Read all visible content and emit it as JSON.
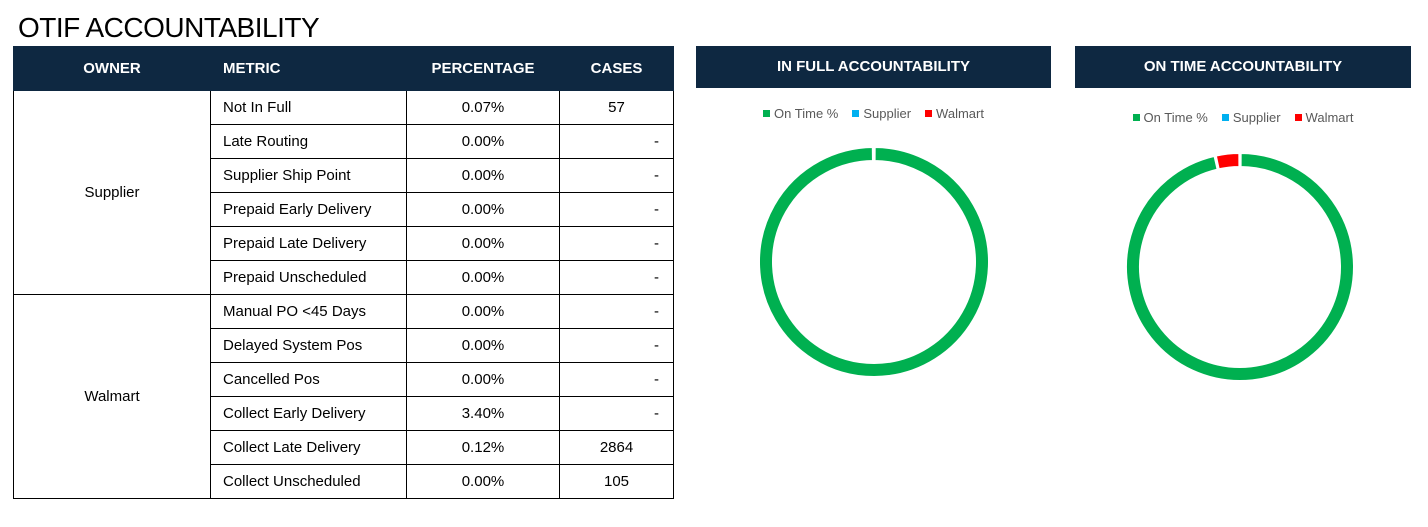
{
  "page_title": "OTIF ACCOUNTABILITY",
  "table": {
    "headers": [
      "OWNER",
      "METRIC",
      "PERCENTAGE",
      "CASES"
    ],
    "groups": [
      {
        "owner": "Supplier",
        "rows": [
          {
            "metric": "Not In Full",
            "percentage": "0.07%",
            "cases": "57"
          },
          {
            "metric": "Late Routing",
            "percentage": "0.00%",
            "cases": "-"
          },
          {
            "metric": "Supplier Ship Point",
            "percentage": "0.00%",
            "cases": "-"
          },
          {
            "metric": "Prepaid Early Delivery",
            "percentage": "0.00%",
            "cases": "-"
          },
          {
            "metric": "Prepaid Late Delivery",
            "percentage": "0.00%",
            "cases": "-"
          },
          {
            "metric": "Prepaid Unscheduled",
            "percentage": "0.00%",
            "cases": "-"
          }
        ]
      },
      {
        "owner": "Walmart",
        "rows": [
          {
            "metric": "Manual PO <45 Days",
            "percentage": "0.00%",
            "cases": "-"
          },
          {
            "metric": "Delayed System Pos",
            "percentage": "0.00%",
            "cases": "-"
          },
          {
            "metric": "Cancelled Pos",
            "percentage": "0.00%",
            "cases": "-"
          },
          {
            "metric": "Collect Early Delivery",
            "percentage": "3.40%",
            "cases": "-"
          },
          {
            "metric": "Collect Late Delivery",
            "percentage": "0.12%",
            "cases": "2864"
          },
          {
            "metric": "Collect Unscheduled",
            "percentage": "0.00%",
            "cases": "105"
          }
        ]
      }
    ]
  },
  "chart_data": [
    {
      "type": "pie",
      "title": "IN FULL ACCOUNTABILITY",
      "categories": [
        "On Time %",
        "Supplier",
        "Walmart"
      ],
      "values": [
        99.93,
        0.07,
        0.0
      ],
      "colors": [
        "#00b050",
        "#00b0f0",
        "#ff0000"
      ],
      "legend": "top"
    },
    {
      "type": "pie",
      "title": "ON TIME ACCOUNTABILITY",
      "categories": [
        "On Time %",
        "Supplier",
        "Walmart"
      ],
      "values": [
        96.5,
        0.0,
        3.5
      ],
      "colors": [
        "#00b050",
        "#00b0f0",
        "#ff0000"
      ],
      "legend": "top"
    }
  ]
}
